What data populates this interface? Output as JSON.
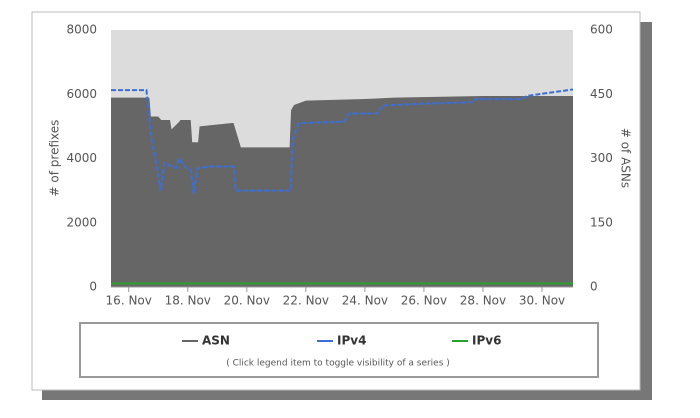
{
  "chart_data": {
    "type": "line",
    "ylabel": "# of prefixes",
    "y2label": "# of ASNs",
    "xlim": [
      15.4,
      31.05
    ],
    "xticks": [
      {
        "value": 16,
        "label": "16. Nov"
      },
      {
        "value": 18,
        "label": "18. Nov"
      },
      {
        "value": 20,
        "label": "20. Nov"
      },
      {
        "value": 22,
        "label": "22. Nov"
      },
      {
        "value": 24,
        "label": "24. Nov"
      },
      {
        "value": 26,
        "label": "26. Nov"
      },
      {
        "value": 28,
        "label": "28. Nov"
      },
      {
        "value": 30,
        "label": "30. Nov"
      }
    ],
    "ylim": [
      0,
      8000
    ],
    "yticks": [
      0,
      2000,
      4000,
      6000,
      8000
    ],
    "y2lim": [
      0,
      600
    ],
    "y2ticks": [
      0,
      150,
      300,
      450,
      600
    ],
    "legend_note": "( Click legend item to toggle visibility of a series )",
    "series": [
      {
        "name": "ASN",
        "color": "#666666",
        "axis": "y2",
        "fill": true,
        "x": [
          15.4,
          16.7,
          16.75,
          17.0,
          17.1,
          17.4,
          17.45,
          17.7,
          17.75,
          18.1,
          18.15,
          18.35,
          18.4,
          19.5,
          19.55,
          19.8,
          21.45,
          21.5,
          21.6,
          22.0,
          24.0,
          25.0,
          28.0,
          31.05
        ],
        "values": [
          442,
          442,
          398,
          398,
          390,
          390,
          368,
          385,
          390,
          390,
          338,
          338,
          375,
          383,
          383,
          326,
          326,
          413,
          425,
          435,
          439,
          442,
          446,
          446
        ]
      },
      {
        "name": "IPv4",
        "color": "#3b6fd6",
        "dashed": true,
        "x": [
          15.4,
          16.6,
          16.75,
          16.9,
          17.08,
          17.2,
          17.6,
          17.7,
          17.95,
          18.1,
          18.2,
          18.33,
          18.8,
          19.55,
          19.62,
          21.48,
          21.55,
          21.75,
          23.3,
          23.45,
          24.4,
          24.6,
          25.8,
          27.6,
          27.75,
          29.3,
          29.5,
          31.05
        ],
        "values": [
          6130,
          6130,
          4700,
          4000,
          3000,
          3850,
          3700,
          4000,
          3700,
          3650,
          2900,
          3700,
          3750,
          3750,
          3000,
          3000,
          4600,
          5100,
          5150,
          5400,
          5400,
          5650,
          5700,
          5750,
          5850,
          5850,
          5950,
          6150
        ]
      },
      {
        "name": "IPv6",
        "color": "#2ca02c",
        "x": [
          15.4,
          31.05
        ],
        "values": [
          110,
          110
        ]
      }
    ]
  }
}
